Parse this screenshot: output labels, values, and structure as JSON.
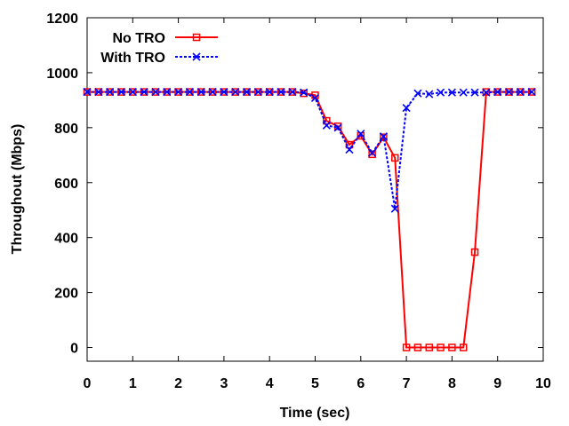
{
  "chart_data": {
    "type": "line",
    "xlabel": "Time (sec)",
    "ylabel": "Throughout (Mbps)",
    "xlim": [
      0,
      10
    ],
    "ylim": [
      -50,
      1200
    ],
    "xticks": [
      0,
      1,
      2,
      3,
      4,
      5,
      6,
      7,
      8,
      9,
      10
    ],
    "yticks": [
      0,
      200,
      400,
      600,
      800,
      1000,
      1200
    ],
    "grid": false,
    "legend_position": "top-left",
    "series": [
      {
        "name": "No TRO",
        "color": "#ff0000",
        "marker": "square",
        "line_style": "solid",
        "x": [
          0,
          0.25,
          0.5,
          0.75,
          1,
          1.25,
          1.5,
          1.75,
          2,
          2.25,
          2.5,
          2.75,
          3,
          3.25,
          3.5,
          3.75,
          4,
          4.25,
          4.5,
          4.75,
          5,
          5.25,
          5.5,
          5.75,
          6,
          6.25,
          6.5,
          6.75,
          7,
          7.25,
          7.5,
          7.75,
          8,
          8.25,
          8.5,
          8.75,
          9,
          9.25,
          9.5,
          9.75
        ],
        "y": [
          930,
          930,
          930,
          930,
          930,
          930,
          930,
          930,
          930,
          930,
          930,
          930,
          930,
          930,
          930,
          930,
          930,
          930,
          930,
          925,
          918,
          825,
          805,
          738,
          770,
          703,
          765,
          690,
          0,
          0,
          0,
          0,
          0,
          0,
          347,
          930,
          930,
          930,
          930,
          930
        ]
      },
      {
        "name": "With TRO",
        "color": "#0000ff",
        "marker": "x",
        "line_style": "dotted",
        "x": [
          0,
          0.25,
          0.5,
          0.75,
          1,
          1.25,
          1.5,
          1.75,
          2,
          2.25,
          2.5,
          2.75,
          3,
          3.25,
          3.5,
          3.75,
          4,
          4.25,
          4.5,
          4.75,
          5,
          5.25,
          5.5,
          5.75,
          6,
          6.25,
          6.5,
          6.75,
          7,
          7.25,
          7.5,
          7.75,
          8,
          8.25,
          8.5,
          8.75,
          9,
          9.25,
          9.5,
          9.75
        ],
        "y": [
          930,
          930,
          930,
          930,
          930,
          930,
          930,
          930,
          930,
          930,
          930,
          930,
          930,
          930,
          930,
          930,
          930,
          930,
          930,
          928,
          908,
          808,
          800,
          720,
          778,
          708,
          768,
          505,
          872,
          925,
          922,
          928,
          928,
          928,
          928,
          928,
          930,
          930,
          930,
          930
        ]
      }
    ]
  }
}
